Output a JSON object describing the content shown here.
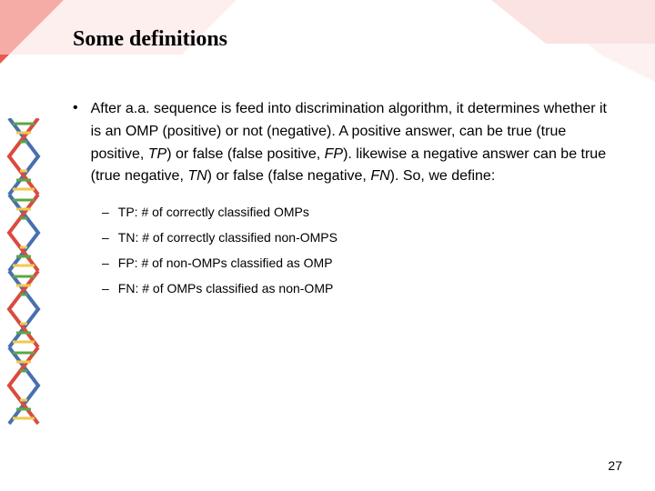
{
  "title": "Some definitions",
  "main_bullet_html": "After a.a. sequence is feed into discrimination algorithm, it determines whether it is an OMP (positive) or not (negative). A positive answer, can be true (true positive, <span class='ital'>TP</span>) or false (false positive, <span class='ital'>FP</span>). likewise a negative answer can be true (true negative, <span class='ital'>TN</span>) or false (false negative, <span class='ital'>FN</span>). So, we define:",
  "sub_items": [
    "TP: # of correctly classified OMPs",
    "TN: # of correctly classified non-OMPS",
    "FP: # of non-OMPs classified as OMP",
    "FN: # of OMPs classified as non-OMP"
  ],
  "page_number": "27",
  "colors": {
    "bg": "#ffffff",
    "text": "#000000",
    "shape_red": "#e8463c",
    "shape_pink": "#f9d0cf",
    "shape_pink2": "#fbe4e3",
    "dna_green": "#5aa843",
    "dna_yellow": "#f2c94c",
    "dna_red": "#d94b3f",
    "dna_blue": "#4a6fb0"
  }
}
